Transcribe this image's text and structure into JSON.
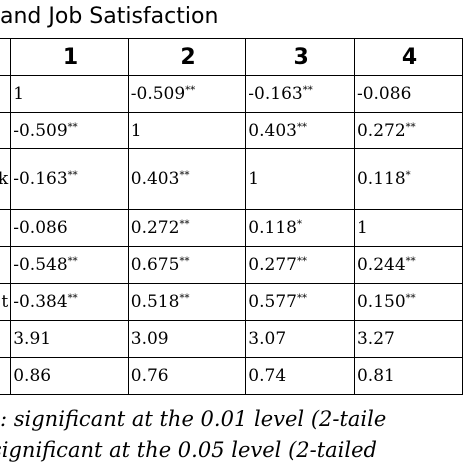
{
  "title": "and Job Satisfaction",
  "columns": [
    "",
    "1",
    "2",
    "3",
    "4"
  ],
  "rows": [
    {
      "label": "",
      "cells": [
        [
          "1",
          ""
        ],
        [
          "-0.509",
          "**"
        ],
        [
          "-0.163",
          "**"
        ],
        [
          "-0.086",
          ""
        ]
      ]
    },
    {
      "label": "",
      "cells": [
        [
          "-0.509",
          "**"
        ],
        [
          "1",
          ""
        ],
        [
          "0.403",
          "**"
        ],
        [
          "0.272",
          "**"
        ]
      ]
    },
    {
      "label": "k",
      "cells": [
        [
          "-0.163",
          "**"
        ],
        [
          "0.403",
          "**"
        ],
        [
          "1",
          ""
        ],
        [
          "0.118",
          "*"
        ]
      ]
    },
    {
      "label": "",
      "cells": [
        [
          "-0.086",
          ""
        ],
        [
          "0.272",
          "**"
        ],
        [
          "0.118",
          "*"
        ],
        [
          "1",
          ""
        ]
      ]
    },
    {
      "label": "",
      "cells": [
        [
          "-0.548",
          "**"
        ],
        [
          "0.675",
          "**"
        ],
        [
          "0.277",
          "**"
        ],
        [
          "0.244",
          "**"
        ]
      ]
    },
    {
      "label": "t",
      "cells": [
        [
          "-0.384",
          "**"
        ],
        [
          "0.518",
          "**"
        ],
        [
          "0.577",
          "**"
        ],
        [
          "0.150",
          "**"
        ]
      ]
    },
    {
      "label": "",
      "cells": [
        [
          "3.91",
          ""
        ],
        [
          "3.09",
          ""
        ],
        [
          "3.07",
          ""
        ],
        [
          "3.27",
          ""
        ]
      ]
    },
    {
      "label": "",
      "cells": [
        [
          "0.86",
          ""
        ],
        [
          "0.76",
          ""
        ],
        [
          "0.74",
          ""
        ],
        [
          "0.81",
          ""
        ]
      ]
    }
  ],
  "notes": [
    ": significant at the 0.01 level (2-taile",
    "significant at the 0.05 level (2-tailed"
  ]
}
